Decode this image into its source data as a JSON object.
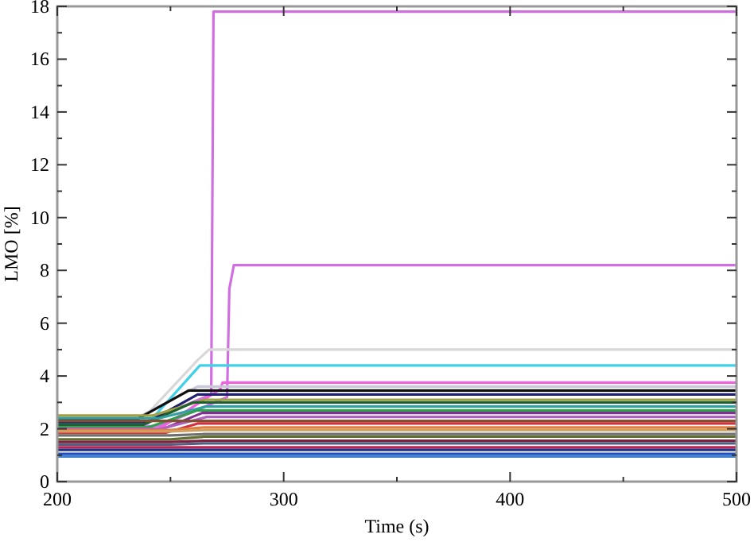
{
  "chart_data": {
    "type": "line",
    "xlabel": "Time (s)",
    "ylabel": "LMO [%]",
    "xlim": [
      200,
      500
    ],
    "ylim": [
      0,
      18
    ],
    "grid": false,
    "line_style": "solid",
    "xticks": [
      200,
      {
        "value": 250,
        "label": null
      },
      300,
      {
        "value": 350,
        "label": null
      },
      400,
      {
        "value": 450,
        "label": null
      },
      500
    ],
    "yticks": [
      0,
      {
        "value": 1,
        "label": null
      },
      2,
      {
        "value": 3,
        "label": null
      },
      4,
      {
        "value": 5,
        "label": null
      },
      6,
      {
        "value": 7,
        "label": null
      },
      8,
      {
        "value": 9,
        "label": null
      },
      10,
      {
        "value": 11,
        "label": null
      },
      12,
      {
        "value": 13,
        "label": null
      },
      14,
      {
        "value": 15,
        "label": null
      },
      16,
      {
        "value": 17,
        "label": null
      },
      18
    ],
    "series": [
      {
        "color": "#d070e0",
        "x": [
          200,
          240,
          268,
          269,
          500
        ],
        "values": [
          2.3,
          2.3,
          3.3,
          17.8,
          17.8
        ]
      },
      {
        "color": "#d070e0",
        "x": [
          200,
          245,
          275,
          276,
          278,
          500
        ],
        "values": [
          2.1,
          2.1,
          3.2,
          7.3,
          8.2,
          8.2
        ]
      },
      {
        "color": "#d8d8d8",
        "x": [
          200,
          238,
          262,
          267,
          500
        ],
        "values": [
          2.4,
          2.4,
          4.6,
          5.0,
          5.0
        ]
      },
      {
        "color": "#40d0e8",
        "x": [
          200,
          240,
          263,
          500
        ],
        "values": [
          2.2,
          2.2,
          4.4,
          4.4
        ]
      },
      {
        "color": "#f060e0",
        "x": [
          200,
          245,
          272,
          273,
          500
        ],
        "values": [
          2.0,
          2.0,
          3.5,
          3.75,
          3.75
        ]
      },
      {
        "color": "#c8c8d8",
        "x": [
          200,
          236,
          262,
          500
        ],
        "values": [
          2.45,
          2.45,
          3.6,
          3.6
        ]
      },
      {
        "color": "#101010",
        "x": [
          200,
          235,
          258,
          500
        ],
        "values": [
          2.35,
          2.35,
          3.45,
          3.45
        ]
      },
      {
        "color": "#202070",
        "x": [
          200,
          240,
          262,
          500
        ],
        "values": [
          2.25,
          2.25,
          3.3,
          3.3
        ]
      },
      {
        "color": "#a0a040",
        "x": [
          200,
          242,
          265,
          500
        ],
        "values": [
          2.5,
          2.5,
          3.1,
          3.1
        ]
      },
      {
        "color": "#206030",
        "x": [
          200,
          238,
          260,
          500
        ],
        "values": [
          2.15,
          2.15,
          3.0,
          3.0
        ]
      },
      {
        "color": "#30a0a0",
        "x": [
          200,
          245,
          266,
          500
        ],
        "values": [
          2.4,
          2.4,
          2.85,
          2.85
        ]
      },
      {
        "color": "#30a050",
        "x": [
          200,
          240,
          262,
          500
        ],
        "values": [
          2.05,
          2.05,
          2.7,
          2.7
        ]
      },
      {
        "color": "#803090",
        "x": [
          200,
          244,
          264,
          500
        ],
        "values": [
          1.9,
          1.9,
          2.6,
          2.6
        ]
      },
      {
        "color": "#b060c0",
        "x": [
          200,
          246,
          266,
          500
        ],
        "values": [
          2.0,
          2.0,
          2.45,
          2.45
        ]
      },
      {
        "color": "#805030",
        "x": [
          200,
          248,
          262,
          500
        ],
        "values": [
          2.3,
          2.3,
          2.3,
          2.3
        ]
      },
      {
        "color": "#d03040",
        "x": [
          200,
          248,
          262,
          500
        ],
        "values": [
          1.85,
          1.85,
          2.2,
          2.2
        ]
      },
      {
        "color": "#e08040",
        "x": [
          200,
          250,
          265,
          500
        ],
        "values": [
          1.95,
          1.95,
          2.05,
          2.05
        ]
      },
      {
        "color": "#d0a060",
        "x": [
          200,
          250,
          265,
          500
        ],
        "values": [
          1.9,
          1.9,
          1.95,
          1.95
        ]
      },
      {
        "color": "#707070",
        "x": [
          200,
          250,
          265,
          500
        ],
        "values": [
          1.75,
          1.75,
          1.8,
          1.8
        ]
      },
      {
        "color": "#607030",
        "x": [
          200,
          250,
          265,
          500
        ],
        "values": [
          1.6,
          1.6,
          1.7,
          1.7
        ]
      },
      {
        "color": "#802040",
        "x": [
          200,
          250,
          265,
          500
        ],
        "values": [
          1.5,
          1.5,
          1.55,
          1.55
        ]
      },
      {
        "color": "#506080",
        "x": [
          200,
          250,
          265,
          500
        ],
        "values": [
          1.4,
          1.4,
          1.45,
          1.45
        ]
      },
      {
        "color": "#c02050",
        "x": [
          200,
          250,
          265,
          500
        ],
        "values": [
          1.3,
          1.3,
          1.3,
          1.3
        ]
      },
      {
        "color": "#203080",
        "x": [
          200,
          250,
          265,
          500
        ],
        "values": [
          1.2,
          1.2,
          1.2,
          1.2
        ]
      },
      {
        "color": "#2050c0",
        "x": [
          200,
          250,
          265,
          500
        ],
        "values": [
          1.05,
          1.05,
          1.05,
          1.05
        ]
      },
      {
        "color": "#4080d0",
        "x": [
          200,
          250,
          265,
          500
        ],
        "values": [
          0.95,
          0.95,
          0.95,
          0.95
        ]
      }
    ]
  }
}
